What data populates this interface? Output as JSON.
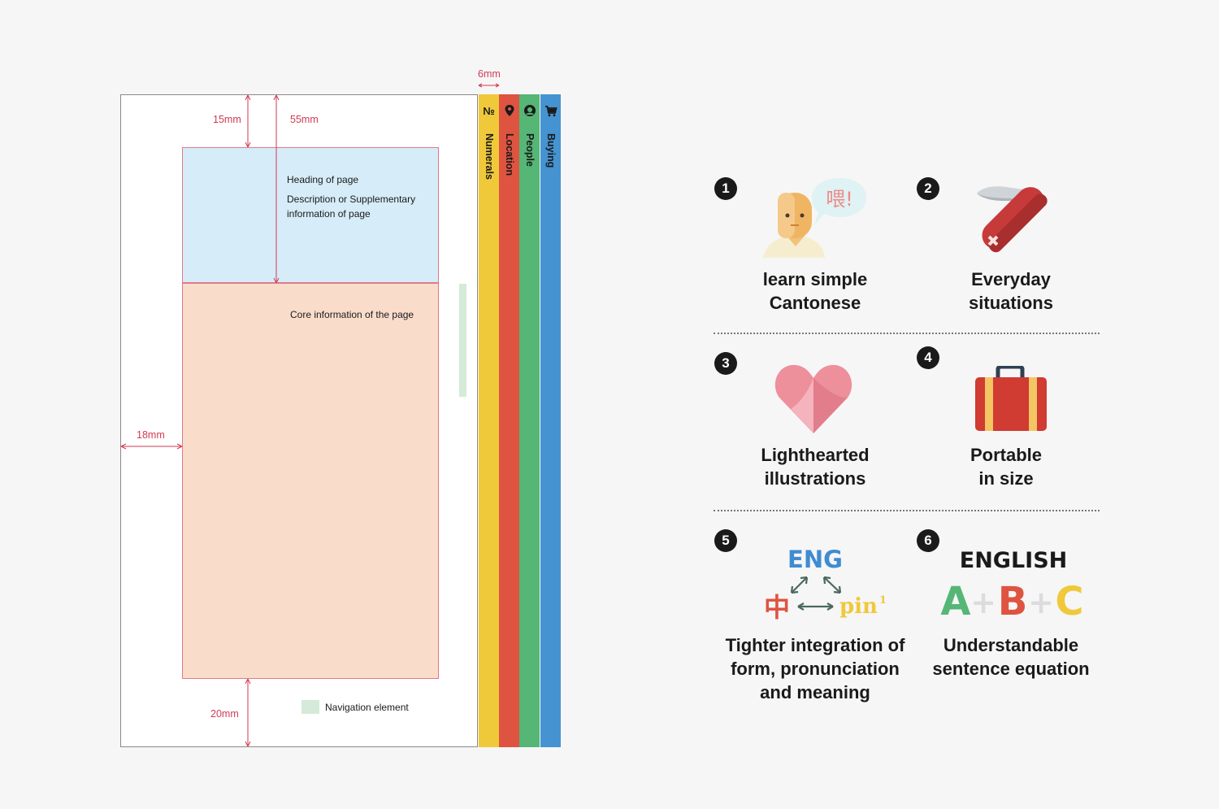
{
  "layout_diagram": {
    "dimensions": {
      "tab_width": "6mm",
      "top_margin": "15mm",
      "header_height": "55mm",
      "left_margin": "18mm",
      "bottom_margin": "20mm"
    },
    "heading_text": "Heading of page",
    "description_text": "Description or Supplementary information of page",
    "core_text": "Core information of the page",
    "legend_text": "Navigation element",
    "tabs": [
      {
        "label": "Numerals",
        "icon": "numero-icon",
        "icon_text": "№",
        "color": "#f0c93a"
      },
      {
        "label": "Location",
        "icon": "location-pin-icon",
        "color": "#de5440"
      },
      {
        "label": "People",
        "icon": "person-icon",
        "color": "#55b676"
      },
      {
        "label": "Buying",
        "icon": "shopping-cart-icon",
        "color": "#4593d0"
      }
    ]
  },
  "features": [
    {
      "number": "1",
      "line1": "learn simple",
      "line2": "Cantonese",
      "icon": "speaking-person-icon",
      "speech_text": "喂!"
    },
    {
      "number": "2",
      "line1": "Everyday",
      "line2": "situations",
      "icon": "pocket-knife-icon"
    },
    {
      "number": "3",
      "line1": "Lighthearted",
      "line2": "illustrations",
      "icon": "heart-icon"
    },
    {
      "number": "4",
      "line1": "Portable",
      "line2": "in size",
      "icon": "suitcase-icon"
    },
    {
      "number": "5",
      "line1": "Tighter integration of",
      "line2": "form, pronunciation",
      "line3": "and meaning",
      "icon": "integration-icon",
      "eng": "ENG",
      "zh": "中",
      "pin": "pin",
      "sup": "1"
    },
    {
      "number": "6",
      "line1": "Understandable",
      "line2": "sentence equation",
      "icon": "equation-icon",
      "english": "ENGLISH",
      "a": "A",
      "b": "B",
      "c": "C",
      "plus": "+"
    }
  ],
  "colors": {
    "dimension_red": "#d23a52",
    "header_blue": "#d6ecf8",
    "core_peach": "#fadccb",
    "nav_green": "#d5ead8"
  }
}
